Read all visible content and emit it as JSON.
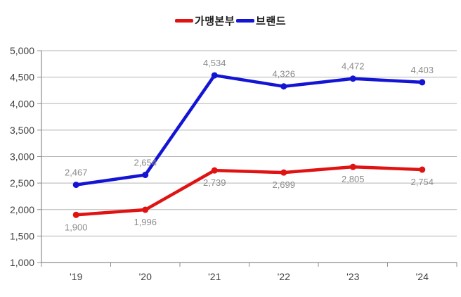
{
  "chart_data": {
    "type": "line",
    "categories": [
      "'19",
      "'20",
      "'21",
      "'22",
      "'23",
      "'24"
    ],
    "series": [
      {
        "name": "가맹본부",
        "color": "#e01212",
        "values": [
          1900,
          1996,
          2739,
          2699,
          2805,
          2754
        ],
        "labels": [
          "1,900",
          "1,996",
          "2,739",
          "2,699",
          "2,805",
          "2,754"
        ],
        "label_position": "below"
      },
      {
        "name": "브랜드",
        "color": "#1414d4",
        "values": [
          2467,
          2654,
          4534,
          4326,
          4472,
          4403
        ],
        "labels": [
          "2,467",
          "2,654",
          "4,534",
          "4,326",
          "4,472",
          "4,403"
        ],
        "label_position": "above"
      }
    ],
    "ylim": [
      1000,
      5000
    ],
    "ytick_step": 500,
    "yticks": [
      "1,000",
      "1,500",
      "2,000",
      "2,500",
      "3,000",
      "3,500",
      "4,000",
      "4,500",
      "5,000"
    ],
    "grid": "horizontal",
    "legend_position": "top-center",
    "data_labels": true,
    "title": "",
    "xlabel": "",
    "ylabel": ""
  },
  "colors": {
    "gridline": "#b3b3b3",
    "axis": "#8c8c8c",
    "tick": "#8c8c8c",
    "axis_text": "#404040",
    "data_label_text": "#8c8c8c",
    "background": "#ffffff"
  }
}
